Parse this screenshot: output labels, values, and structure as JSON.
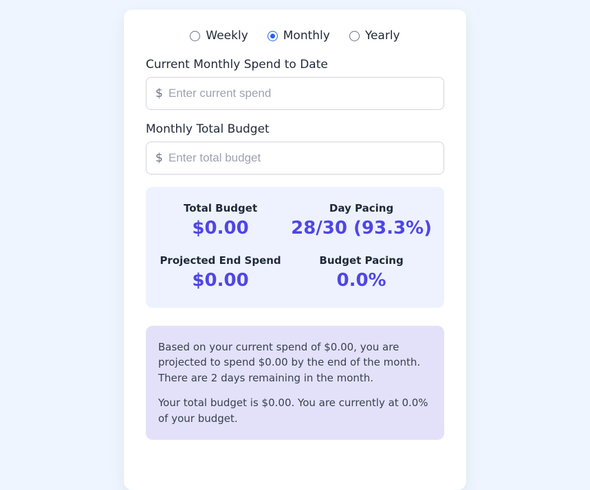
{
  "period": {
    "options": [
      {
        "label": "Weekly",
        "checked": false
      },
      {
        "label": "Monthly",
        "checked": true
      },
      {
        "label": "Yearly",
        "checked": false
      }
    ]
  },
  "fields": {
    "currentSpend": {
      "label": "Current Monthly Spend to Date",
      "placeholder": "Enter current spend",
      "value": "",
      "prefix": "$"
    },
    "totalBudget": {
      "label": "Monthly Total Budget",
      "placeholder": "Enter total budget",
      "value": "",
      "prefix": "$"
    }
  },
  "stats": {
    "totalBudget": {
      "label": "Total Budget",
      "value": "$0.00"
    },
    "dayPacing": {
      "label": "Day Pacing",
      "value": "28/30 (93.3%)"
    },
    "projectedEnd": {
      "label": "Projected End Spend",
      "value": "$0.00"
    },
    "budgetPacing": {
      "label": "Budget Pacing",
      "value": "0.0%"
    }
  },
  "summary": {
    "p1": "Based on your current spend of $0.00, you are projected to spend $0.00 by the end of the month. There are 2 days remaining in the month.",
    "p2": "Your total budget is $0.00. You are currently at 0.0% of your budget."
  },
  "colors": {
    "pageBg": "#eff5ff",
    "cardBg": "#ffffff",
    "statsBg": "#eef2ff",
    "summaryBg": "#e2e1f9",
    "accent": "#4f46e5",
    "radioAccent": "#2563eb",
    "textPrimary": "#1f2937",
    "textMuted": "#6b7280",
    "border": "#d1d5db"
  }
}
